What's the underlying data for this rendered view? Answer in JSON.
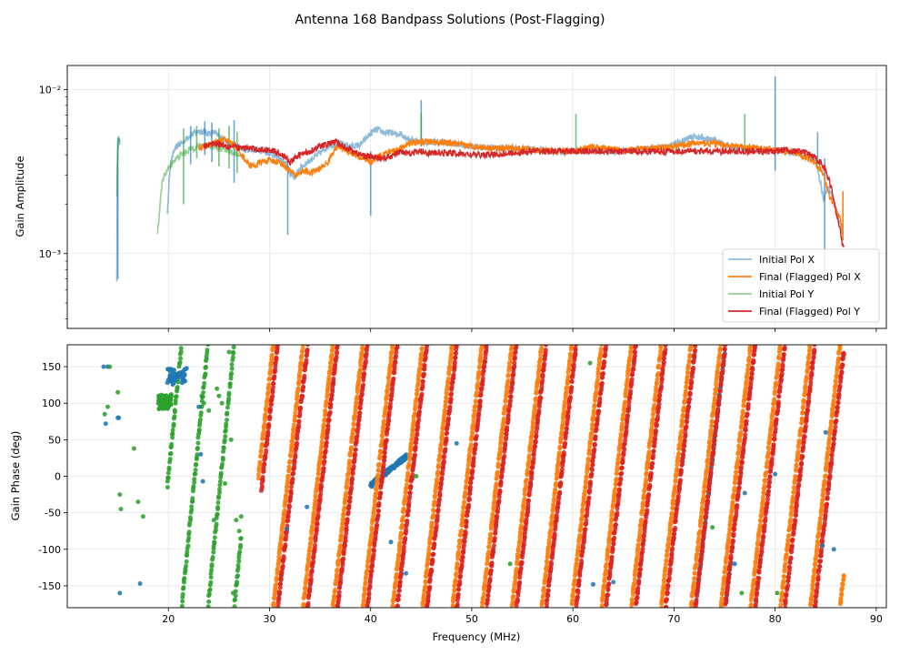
{
  "chart_data": {
    "title": "Antenna 168 Bandpass Solutions (Post-Flagging)",
    "xlabel": "Frequency (MHz)",
    "xlim": [
      10,
      91
    ],
    "xticks": [
      20,
      30,
      40,
      50,
      60,
      70,
      80,
      90
    ],
    "amplitude": {
      "type": "line",
      "yscale": "log",
      "ylabel": "Gain Amplitude",
      "ylim": [
        0.00035,
        0.014
      ],
      "ytick_labels": [
        "10⁻²",
        "10⁻³"
      ],
      "ytick_values": [
        0.01,
        0.001
      ],
      "legend_position": "lower-right",
      "legend": [
        "Initial Pol X",
        "Final (Flagged) Pol X",
        "Initial Pol Y",
        "Final (Flagged) Pol Y"
      ],
      "series": [
        {
          "name": "Initial Pol X",
          "color": "#1f77b4",
          "alpha": 0.5,
          "x": [
            14.9,
            15.0,
            15.1,
            15.2,
            19.9,
            20.2,
            20.6,
            21.0,
            21.5,
            22.0,
            22.5,
            23.0,
            23.5,
            24.0,
            24.5,
            25.0,
            25.5,
            26.0,
            26.5,
            27.0,
            27.5,
            28.0,
            29.0,
            30.0,
            31.0,
            31.8,
            32.0,
            32.5,
            33.0,
            34.0,
            35.0,
            36.0,
            37.0,
            38.0,
            39.0,
            40.0,
            40.5,
            41.0,
            41.5,
            42.0,
            42.5,
            43.0,
            43.5,
            44.0,
            44.5,
            45.0,
            46.0,
            48.0,
            50.0,
            52.0,
            54.0,
            56.0,
            58.0,
            60.0,
            62.0,
            64.0,
            66.0,
            68.0,
            70.0,
            71.0,
            72.0,
            73.0,
            74.0,
            75.0,
            76.0,
            78.0,
            80.0,
            81.0,
            82.0,
            83.0,
            84.0,
            84.8,
            85.2,
            85.8,
            86.3,
            86.7
          ],
          "y": [
            0.0007,
            0.0045,
            0.0049,
            0.0046,
            0.0017,
            0.0035,
            0.0043,
            0.0046,
            0.0048,
            0.0052,
            0.0054,
            0.0056,
            0.0055,
            0.0054,
            0.0055,
            0.0052,
            0.005,
            0.0047,
            0.0045,
            0.0045,
            0.0043,
            0.0043,
            0.0043,
            0.0041,
            0.0038,
            0.0034,
            0.0031,
            0.0029,
            0.0033,
            0.0037,
            0.0041,
            0.0046,
            0.0047,
            0.0045,
            0.0046,
            0.0054,
            0.0057,
            0.0056,
            0.0054,
            0.0055,
            0.0053,
            0.0054,
            0.0051,
            0.0049,
            0.0049,
            0.0048,
            0.0048,
            0.0047,
            0.0045,
            0.0044,
            0.0044,
            0.0043,
            0.0042,
            0.0042,
            0.0043,
            0.0042,
            0.0043,
            0.0044,
            0.0046,
            0.0049,
            0.0052,
            0.005,
            0.0049,
            0.0046,
            0.0044,
            0.0043,
            0.0043,
            0.0042,
            0.0041,
            0.0039,
            0.0036,
            0.0021,
            0.0026,
            0.0021,
            0.0016,
            0.0013
          ],
          "spikes": [
            [
              15.0,
              0.0051,
              0.0007
            ],
            [
              22.2,
              0.006,
              0.0035
            ],
            [
              23.6,
              0.0064,
              0.004
            ],
            [
              24.3,
              0.0063,
              0.0036
            ],
            [
              26.5,
              0.0065,
              0.0027
            ],
            [
              31.8,
              0.0037,
              0.0013
            ],
            [
              40.0,
              0.0042,
              0.0017
            ],
            [
              45.0,
              0.0086,
              0.0045
            ],
            [
              80.0,
              0.012,
              0.0032
            ],
            [
              84.2,
              0.0055,
              0.0035
            ],
            [
              84.9,
              0.0038,
              0.0008
            ]
          ]
        },
        {
          "name": "Final (Flagged) Pol X",
          "color": "#ff7f0e",
          "alpha": 1.0,
          "x": [
            23.0,
            23.5,
            24.0,
            24.5,
            25.0,
            25.5,
            26.0,
            26.5,
            27.0,
            27.5,
            28.0,
            28.5,
            29.0,
            30.0,
            31.0,
            31.5,
            32.0,
            32.5,
            33.0,
            33.5,
            34.0,
            35.0,
            35.8,
            36.3,
            36.8,
            37.5,
            38.0,
            38.5,
            39.0,
            39.5,
            40.0,
            40.5,
            41.0,
            41.5,
            42.0,
            42.5,
            43.0,
            43.5,
            44.0,
            45.0,
            46.0,
            48.0,
            50.0,
            52.0,
            54.0,
            56.0,
            58.0,
            60.0,
            62.0,
            64.0,
            66.0,
            68.0,
            70.0,
            72.0,
            74.0,
            76.0,
            78.0,
            80.0,
            81.0,
            82.0,
            83.0,
            84.0,
            84.8,
            85.3,
            85.8,
            86.3,
            86.7
          ],
          "y": [
            0.0044,
            0.0045,
            0.0046,
            0.0047,
            0.0048,
            0.005,
            0.0048,
            0.0046,
            0.0042,
            0.0038,
            0.0035,
            0.0034,
            0.0036,
            0.0037,
            0.0036,
            0.0034,
            0.0032,
            0.003,
            0.0031,
            0.0032,
            0.0031,
            0.0033,
            0.0036,
            0.0042,
            0.0045,
            0.0043,
            0.0041,
            0.004,
            0.0038,
            0.0037,
            0.0036,
            0.0038,
            0.004,
            0.0041,
            0.0042,
            0.0043,
            0.0044,
            0.0046,
            0.0047,
            0.0048,
            0.0048,
            0.0047,
            0.0045,
            0.0044,
            0.0044,
            0.0043,
            0.0042,
            0.0042,
            0.0045,
            0.0043,
            0.0043,
            0.0044,
            0.0045,
            0.0047,
            0.0047,
            0.0045,
            0.0044,
            0.0043,
            0.0042,
            0.0041,
            0.0039,
            0.0036,
            0.003,
            0.0023,
            0.002,
            0.0017,
            0.0014
          ],
          "spikes": [
            [
              86.7,
              0.0024,
              0.0012
            ]
          ]
        },
        {
          "name": "Initial Pol Y",
          "color": "#2ca02c",
          "alpha": 0.5,
          "x": [
            14.9,
            15.0,
            15.1,
            15.2,
            18.9,
            19.1,
            19.3,
            19.6,
            20.0,
            20.4,
            20.8,
            21.2,
            21.6,
            22.0,
            22.5,
            23.0,
            23.5,
            24.0,
            24.5,
            25.0,
            25.5,
            26.0,
            26.5,
            27.0
          ],
          "y": [
            0.0022,
            0.0047,
            0.005,
            0.0048,
            0.0013,
            0.0017,
            0.0025,
            0.003,
            0.0033,
            0.0036,
            0.0038,
            0.004,
            0.0041,
            0.0043,
            0.0044,
            0.0045,
            0.0046,
            0.0046,
            0.0045,
            0.0044,
            0.0043,
            0.0042,
            0.0041,
            0.004
          ],
          "spikes": [
            [
              21.5,
              0.0058,
              0.002
            ],
            [
              22.8,
              0.006,
              0.0038
            ],
            [
              25.0,
              0.0058,
              0.0034
            ],
            [
              26.0,
              0.006,
              0.0033
            ],
            [
              26.8,
              0.0055,
              0.0031
            ],
            [
              45.0,
              0.0072,
              0.0045
            ],
            [
              60.3,
              0.0071,
              0.0042
            ],
            [
              77.0,
              0.0071,
              0.0042
            ]
          ]
        },
        {
          "name": "Final (Flagged) Pol Y",
          "color": "#d62728",
          "alpha": 1.0,
          "x": [
            23.5,
            24.0,
            24.5,
            25.0,
            25.5,
            26.0,
            26.5,
            27.0,
            27.5,
            28.0,
            29.0,
            30.0,
            31.0,
            31.5,
            32.0,
            32.5,
            33.0,
            34.0,
            35.0,
            36.0,
            36.5,
            37.0,
            38.0,
            39.0,
            40.0,
            41.0,
            42.0,
            43.0,
            44.0,
            45.0,
            46.0,
            48.0,
            50.0,
            52.0,
            54.0,
            56.0,
            58.0,
            60.0,
            62.0,
            64.0,
            66.0,
            68.0,
            70.0,
            72.0,
            74.0,
            76.0,
            78.0,
            80.0,
            81.0,
            82.0,
            82.5,
            83.0,
            83.5,
            84.0,
            84.5,
            85.0,
            85.5,
            86.0,
            86.3,
            86.6,
            86.8
          ],
          "y": [
            0.0045,
            0.0046,
            0.0047,
            0.0047,
            0.0046,
            0.0045,
            0.0045,
            0.0044,
            0.0044,
            0.0044,
            0.0043,
            0.0043,
            0.0041,
            0.0039,
            0.0036,
            0.0038,
            0.004,
            0.0042,
            0.0045,
            0.0047,
            0.0048,
            0.0046,
            0.0043,
            0.004,
            0.0039,
            0.0038,
            0.0039,
            0.0042,
            0.0041,
            0.0042,
            0.0041,
            0.0041,
            0.004,
            0.004,
            0.0041,
            0.0042,
            0.0042,
            0.0042,
            0.0042,
            0.0042,
            0.0042,
            0.0042,
            0.0042,
            0.0042,
            0.0042,
            0.0042,
            0.0042,
            0.0042,
            0.0043,
            0.0042,
            0.0042,
            0.0041,
            0.004,
            0.0038,
            0.0036,
            0.0032,
            0.0026,
            0.0018,
            0.0015,
            0.0012,
            0.0011
          ],
          "spikes": []
        }
      ]
    },
    "phase": {
      "type": "scatter",
      "ylabel": "Gain Phase (deg)",
      "ylim": [
        -180,
        180
      ],
      "yticks": [
        150,
        100,
        50,
        0,
        -50,
        -100,
        -150
      ],
      "wrap_series": [
        {
          "name": "Final (Flagged) Pol X",
          "color": "#ff7f0e",
          "f0": 28.9,
          "step": 2.95,
          "x_end": 86.8,
          "x_start_by_wrap": [
            [
              28.9,
              29.0
            ]
          ],
          "range": [
            28.9,
            86.8
          ]
        },
        {
          "name": "Final (Flagged) Pol Y",
          "color": "#d62728",
          "f0": 29.35,
          "step": 2.95,
          "x_end": 86.8,
          "range": [
            29.2,
            86.8
          ]
        },
        {
          "name": "Initial Pol X",
          "color": "#1f77b4",
          "f0": 41.1,
          "step": 32.4,
          "x_end": 76.0,
          "range": [
            40.0,
            43.5
          ]
        },
        {
          "name": "Initial Pol X (72-76 MHz)",
          "color": "#1f77b4",
          "f0": 73.6,
          "step": 2.95,
          "x_end": 75.5,
          "range": [
            72.0,
            75.5
          ]
        },
        {
          "name": "Initial Pol Y",
          "color": "#2ca02c",
          "f0": 20.0,
          "step": 2.6,
          "x_end": 28.0,
          "range": [
            19.9,
            27.2
          ]
        }
      ],
      "scatter_points": [
        {
          "color": "#1f77b4",
          "x": [
            13.6,
            13.8,
            14.0,
            15.0,
            15.1,
            15.2,
            17.2,
            19.9,
            20.0,
            20.2,
            20.4,
            20.6,
            20.8,
            21.0,
            21.2,
            21.4,
            21.6,
            21.8,
            23.0,
            23.2,
            23.4,
            31.7,
            33.7,
            42.0,
            43.5,
            48.5,
            62.0,
            64.0,
            76.0,
            77.0,
            80.0,
            84.7,
            85.0,
            85.8
          ],
          "y": [
            150,
            72,
            150,
            80,
            80,
            -160,
            -147,
            128,
            132,
            130,
            135,
            132,
            140,
            138,
            142,
            140,
            146,
            148,
            95,
            30,
            -7,
            -72,
            -42,
            -90,
            -133,
            45,
            -148,
            -145,
            -120,
            -23,
            3,
            -95,
            60,
            -100
          ]
        },
        {
          "color": "#2ca02c",
          "x": [
            13.7,
            14.0,
            14.2,
            15.0,
            15.2,
            15.3,
            16.6,
            17.0,
            17.5,
            19.0,
            19.2,
            19.4,
            19.6,
            19.8,
            20.0,
            23.3,
            23.5,
            24.0,
            24.5,
            24.8,
            25.0,
            25.3,
            25.6,
            26.0,
            26.2,
            26.4,
            26.7,
            27.0,
            27.2,
            44.5,
            53.8,
            61.7,
            73.8,
            76.7,
            80.2
          ],
          "y": [
            85,
            95,
            150,
            115,
            -25,
            -45,
            38,
            -35,
            -55,
            100,
            105,
            95,
            110,
            100,
            105,
            110,
            100,
            90,
            -60,
            120,
            110,
            100,
            -10,
            170,
            50,
            -160,
            -60,
            -75,
            -55,
            0,
            -120,
            155,
            -70,
            -160,
            -160
          ]
        }
      ]
    }
  }
}
